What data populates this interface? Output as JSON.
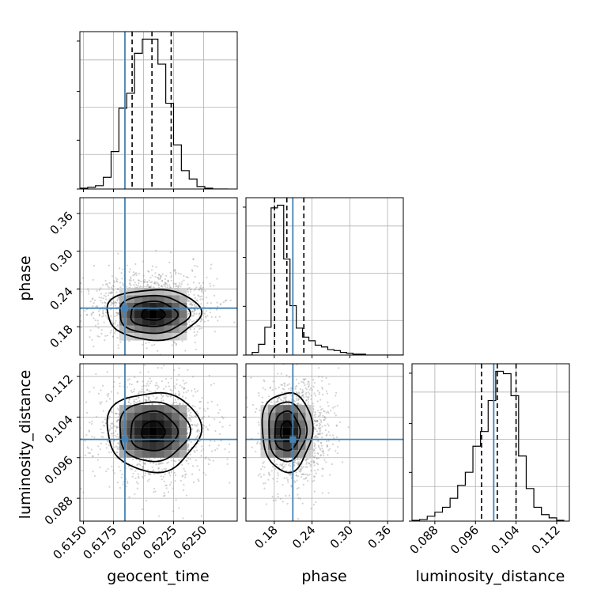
{
  "chart_data": {
    "type": "corner",
    "parameters": [
      "geocent_time",
      "phase",
      "luminosity_distance"
    ],
    "truths": [
      0.61845,
      0.2095,
      0.0996
    ],
    "colors": {
      "truth": "#4682b4",
      "hist": "#000000",
      "quantile": "#000000",
      "grid": "#b0b0b0",
      "points": "#808080"
    },
    "ranges": [
      [
        0.6147,
        0.6278
      ],
      [
        0.135,
        0.385
      ],
      [
        0.0835,
        0.1145
      ]
    ],
    "ticks": [
      {
        "values": [
          0.615,
          0.6175,
          0.62,
          0.6225,
          0.625
        ],
        "labels": [
          "0.6150",
          "0.6175",
          "0.6200",
          "0.6225",
          "0.6250"
        ]
      },
      {
        "values": [
          0.18,
          0.24,
          0.3,
          0.36
        ],
        "labels": [
          "0.18",
          "0.24",
          "0.30",
          "0.36"
        ]
      },
      {
        "values": [
          0.088,
          0.096,
          0.104,
          0.112
        ],
        "labels": [
          "0.088",
          "0.096",
          "0.104",
          "0.112"
        ]
      }
    ],
    "quantiles": [
      [
        0.61905,
        0.6207,
        0.6223
      ],
      [
        0.1805,
        0.2,
        0.227
      ],
      [
        0.0972,
        0.1003,
        0.104
      ]
    ],
    "histograms": [
      {
        "edges": [
          0.6147,
          0.61535,
          0.616,
          0.61665,
          0.6173,
          0.61795,
          0.6186,
          0.61925,
          0.6199,
          0.62055,
          0.6212,
          0.62185,
          0.6225,
          0.62315,
          0.6238,
          0.62445,
          0.6251,
          0.62575,
          0.6264,
          0.62705
        ],
        "counts": [
          1,
          2,
          4,
          14,
          45,
          97,
          115,
          163,
          180,
          180,
          150,
          103,
          53,
          22,
          12,
          3,
          1,
          0,
          0
        ]
      },
      {
        "edges": [
          0.135,
          0.145,
          0.155,
          0.165,
          0.175,
          0.185,
          0.195,
          0.205,
          0.215,
          0.225,
          0.235,
          0.245,
          0.255,
          0.265,
          0.275,
          0.285,
          0.295,
          0.305,
          0.315,
          0.325,
          0.335,
          0.345,
          0.355,
          0.365,
          0.375,
          0.385
        ],
        "counts": [
          0,
          3,
          12,
          31,
          164,
          167,
          107,
          55,
          30,
          20,
          16,
          11,
          9,
          6,
          5,
          3,
          2,
          1,
          1,
          0,
          0,
          0,
          0,
          0,
          0
        ]
      },
      {
        "edges": [
          0.0835,
          0.085,
          0.0865,
          0.088,
          0.0895,
          0.091,
          0.0925,
          0.094,
          0.0955,
          0.097,
          0.0985,
          0.1,
          0.1015,
          0.103,
          0.1045,
          0.106,
          0.1075,
          0.109,
          0.1105,
          0.112,
          0.1135
        ],
        "counts": [
          1,
          2,
          6,
          11,
          17,
          28,
          44,
          60,
          92,
          110,
          148,
          184,
          181,
          154,
          80,
          40,
          17,
          8,
          4,
          1
        ]
      }
    ],
    "joint": [
      {
        "xi": 0,
        "yi": 1,
        "mean": [
          0.6208,
          0.2
        ],
        "sd": [
          0.00195,
          0.02
        ]
      },
      {
        "xi": 0,
        "yi": 2,
        "mean": [
          0.6208,
          0.1012
        ],
        "sd": [
          0.00195,
          0.0039
        ]
      },
      {
        "xi": 1,
        "yi": 2,
        "mean": [
          0.2,
          0.1012
        ],
        "sd": [
          0.02,
          0.0039
        ]
      }
    ],
    "axis_labels": [
      "geocent_time",
      "phase",
      "luminosity_distance"
    ]
  }
}
